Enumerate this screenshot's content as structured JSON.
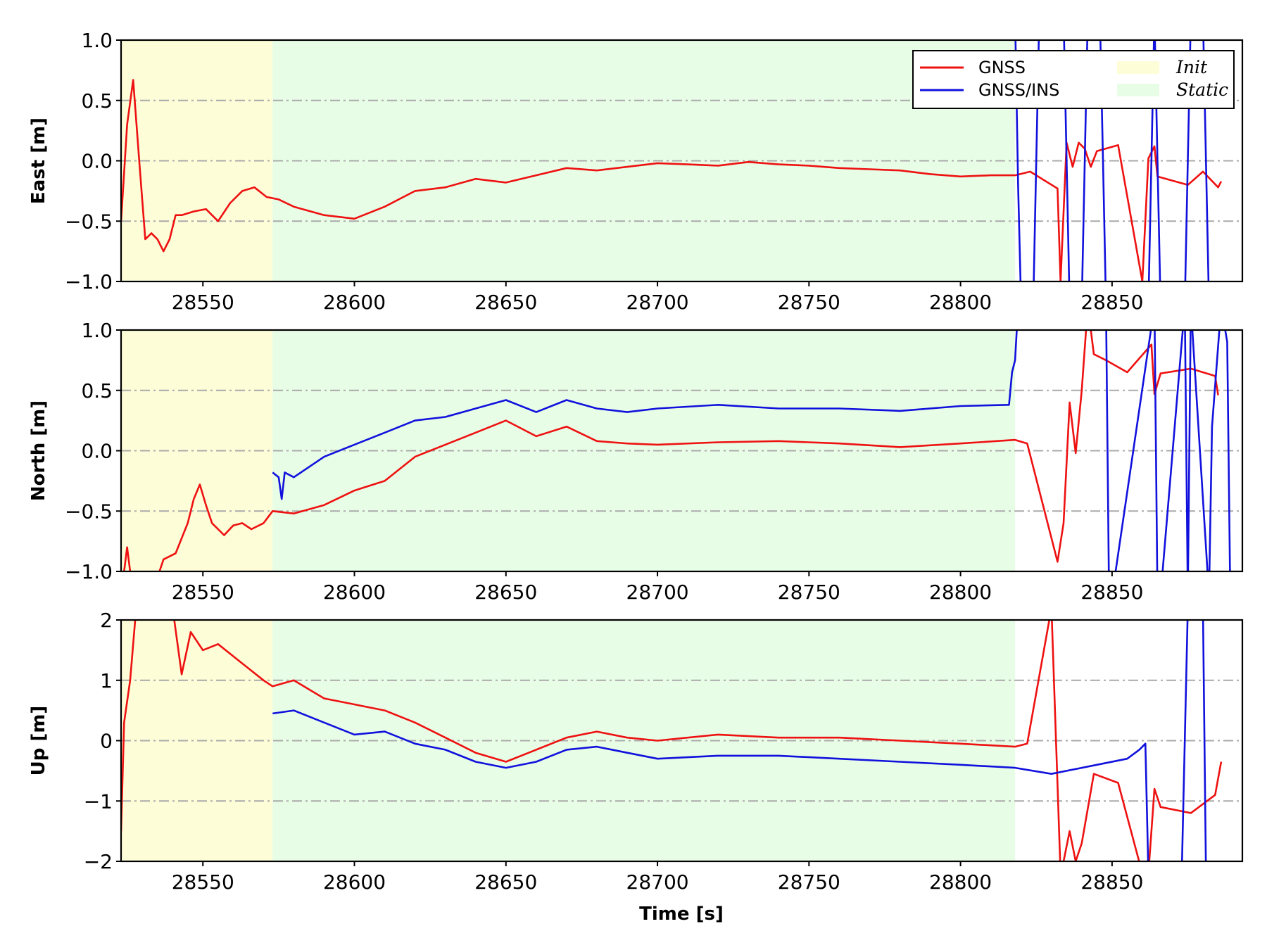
{
  "chart_data": {
    "type": "line",
    "xlabel": "Time [s]",
    "x_ticks": [
      "28550",
      "28600",
      "28650",
      "28700",
      "28750",
      "28800",
      "28850"
    ],
    "x_tick_values": [
      28550,
      28600,
      28650,
      28700,
      28750,
      28800,
      28850
    ],
    "xlim": [
      28523,
      28893
    ],
    "colors": {
      "GNSS": "#ee1111",
      "GNSS/INS": "#1111dd",
      "Init": "#fdfdd8",
      "Static": "#e8fde6",
      "grid": "#aaaaaa"
    },
    "legend": {
      "placement": "top-right",
      "series": [
        "GNSS",
        "GNSS/INS"
      ],
      "regions": [
        "Init",
        "Static"
      ]
    },
    "regions": [
      {
        "name": "Init",
        "x": [
          28523,
          28573
        ]
      },
      {
        "name": "Static",
        "x": [
          28573,
          28818
        ]
      }
    ],
    "panels": [
      {
        "ylabel": "East [m]",
        "ylim": [
          -1.0,
          1.0
        ],
        "y_ticks": [
          "1.0",
          "0.5",
          "0.0",
          "−0.5",
          "−1.0"
        ],
        "y_tick_values": [
          1.0,
          0.5,
          0.0,
          -0.5,
          -1.0
        ],
        "grid_y": [
          0.5,
          0.0,
          -0.5
        ],
        "series": [
          {
            "name": "GNSS",
            "x": [
              28523,
              28525,
              28527,
              28529,
              28531,
              28533,
              28535,
              28537,
              28539,
              28541,
              28543,
              28547,
              28551,
              28555,
              28559,
              28563,
              28567,
              28571,
              28575,
              28580,
              28590,
              28600,
              28610,
              28620,
              28630,
              28640,
              28650,
              28660,
              28670,
              28680,
              28690,
              28700,
              28710,
              28720,
              28730,
              28740,
              28750,
              28760,
              28770,
              28780,
              28790,
              28800,
              28810,
              28818,
              28823,
              28832,
              28833,
              28835,
              28837,
              28839,
              28841,
              28843,
              28845,
              28852,
              28860,
              28862,
              28864,
              28865,
              28875,
              28880,
              28885,
              28886
            ],
            "y": [
              -0.5,
              0.3,
              0.67,
              0.0,
              -0.65,
              -0.6,
              -0.65,
              -0.75,
              -0.65,
              -0.45,
              -0.45,
              -0.42,
              -0.4,
              -0.5,
              -0.35,
              -0.25,
              -0.22,
              -0.3,
              -0.32,
              -0.38,
              -0.45,
              -0.48,
              -0.38,
              -0.25,
              -0.22,
              -0.15,
              -0.18,
              -0.12,
              -0.06,
              -0.08,
              -0.05,
              -0.02,
              -0.03,
              -0.04,
              -0.01,
              -0.03,
              -0.04,
              -0.06,
              -0.07,
              -0.08,
              -0.11,
              -0.13,
              -0.12,
              -0.12,
              -0.09,
              -0.23,
              -1.0,
              0.15,
              -0.05,
              0.15,
              0.1,
              -0.05,
              0.08,
              0.13,
              -1.0,
              0.02,
              0.12,
              -0.13,
              -0.2,
              -0.09,
              -0.22,
              -0.17
            ]
          },
          {
            "name": "GNSS/INS",
            "x": [
              28818,
              28819,
              28820,
              28824,
              28825,
              28826,
              28834,
              28835,
              28836,
              28840,
              28841,
              28842,
              28846,
              28847,
              28848,
              28862,
              28863,
              28864,
              28865,
              28866,
              28874,
              28875,
              28876,
              28880,
              28881,
              28882
            ],
            "y": [
              1.2,
              -0.2,
              -1.2,
              -1.2,
              0.0,
              1.2,
              1.2,
              0.0,
              -1.2,
              -1.2,
              0.0,
              1.2,
              1.2,
              0.0,
              -1.2,
              -1.2,
              0.0,
              1.2,
              0.0,
              -1.2,
              -1.2,
              0.0,
              1.2,
              1.2,
              0.0,
              -1.2
            ]
          }
        ]
      },
      {
        "ylabel": "North [m]",
        "ylim": [
          -1.0,
          1.0
        ],
        "y_ticks": [
          "1.0",
          "0.5",
          "0.0",
          "−0.5",
          "−1.0"
        ],
        "y_tick_values": [
          1.0,
          0.5,
          0.0,
          -0.5,
          -1.0
        ],
        "grid_y": [
          0.5,
          0.0,
          -0.5
        ],
        "series": [
          {
            "name": "GNSS",
            "x": [
              28523,
              28525,
              28527,
              28529,
              28533,
              28537,
              28541,
              28545,
              28547,
              28549,
              28551,
              28553,
              28557,
              28560,
              28563,
              28566,
              28570,
              28573,
              28580,
              28590,
              28600,
              28610,
              28620,
              28630,
              28640,
              28650,
              28660,
              28670,
              28680,
              28690,
              28700,
              28720,
              28740,
              28760,
              28780,
              28800,
              28818,
              28822,
              28832,
              28834,
              28836,
              28838,
              28840,
              28842,
              28844,
              28848,
              28855,
              28863,
              28864,
              28866,
              28876,
              28884,
              28885
            ],
            "y": [
              -1.2,
              -0.8,
              -1.2,
              -1.2,
              -1.2,
              -0.9,
              -0.85,
              -0.6,
              -0.4,
              -0.28,
              -0.45,
              -0.6,
              -0.7,
              -0.62,
              -0.6,
              -0.65,
              -0.6,
              -0.5,
              -0.52,
              -0.45,
              -0.33,
              -0.25,
              -0.05,
              0.05,
              0.15,
              0.25,
              0.12,
              0.2,
              0.08,
              0.06,
              0.05,
              0.07,
              0.08,
              0.06,
              0.03,
              0.06,
              0.09,
              0.06,
              -0.92,
              -0.6,
              0.4,
              -0.02,
              0.5,
              1.2,
              0.8,
              0.75,
              0.65,
              0.88,
              0.47,
              0.64,
              0.68,
              0.62,
              0.46
            ]
          },
          {
            "name": "GNSS/INS",
            "x": [
              28573,
              28575,
              28576,
              28577,
              28580,
              28590,
              28600,
              28610,
              28620,
              28630,
              28640,
              28650,
              28660,
              28670,
              28680,
              28690,
              28700,
              28720,
              28740,
              28760,
              28780,
              28800,
              28816,
              28817,
              28818,
              28819,
              28848,
              28849,
              28850,
              28864,
              28865,
              28866,
              28874,
              28875,
              28876,
              28882,
              28883,
              28886,
              28888,
              28889
            ],
            "y": [
              -0.18,
              -0.22,
              -0.4,
              -0.18,
              -0.22,
              -0.05,
              0.05,
              0.15,
              0.25,
              0.28,
              0.35,
              0.42,
              0.32,
              0.42,
              0.35,
              0.32,
              0.35,
              0.38,
              0.35,
              0.35,
              0.33,
              0.37,
              0.38,
              0.65,
              0.75,
              1.2,
              1.2,
              -1.2,
              -1.2,
              1.2,
              -1.2,
              -1.2,
              1.2,
              -1.2,
              1.2,
              -1.2,
              0.2,
              1.2,
              0.9,
              -1.2
            ]
          }
        ]
      },
      {
        "ylabel": "Up [m]",
        "ylim": [
          -2,
          2
        ],
        "y_ticks": [
          "2",
          "1",
          "0",
          "−1",
          "−2"
        ],
        "y_tick_values": [
          2,
          1,
          0,
          -1,
          -2
        ],
        "grid_y": [
          1,
          0,
          -1
        ],
        "series": [
          {
            "name": "GNSS",
            "x": [
              28523,
              28524,
              28526,
              28528,
              28532,
              28540,
              28543,
              28546,
              28550,
              28555,
              28560,
              28565,
              28570,
              28573,
              28580,
              28590,
              28600,
              28610,
              28620,
              28630,
              28640,
              28650,
              28660,
              28670,
              28680,
              28690,
              28700,
              28720,
              28740,
              28760,
              28780,
              28800,
              28818,
              28822,
              28830,
              28833,
              28834,
              28836,
              28838,
              28840,
              28844,
              28852,
              28860,
              28862,
              28864,
              28866,
              28876,
              28884,
              28886
            ],
            "y": [
              -1.5,
              0.3,
              1.0,
              2.2,
              2.2,
              2.2,
              1.1,
              1.8,
              1.5,
              1.6,
              1.4,
              1.2,
              1.0,
              0.9,
              1.0,
              0.7,
              0.6,
              0.5,
              0.3,
              0.05,
              -0.2,
              -0.35,
              -0.15,
              0.05,
              0.15,
              0.05,
              0.0,
              0.1,
              0.05,
              0.05,
              0.0,
              -0.05,
              -0.1,
              -0.05,
              2.2,
              -2.2,
              -2.0,
              -1.5,
              -2.0,
              -1.7,
              -0.55,
              -0.7,
              -2.2,
              -2.2,
              -0.8,
              -1.1,
              -1.2,
              -0.9,
              -0.35
            ]
          },
          {
            "name": "GNSS/INS",
            "x": [
              28573,
              28580,
              28590,
              28600,
              28610,
              28620,
              28630,
              28640,
              28650,
              28660,
              28670,
              28680,
              28690,
              28700,
              28720,
              28740,
              28760,
              28780,
              28800,
              28818,
              28830,
              28845,
              28855,
              28859,
              28861,
              28862,
              28873,
              28875,
              28876,
              28880,
              28881
            ],
            "y": [
              0.45,
              0.5,
              0.3,
              0.1,
              0.15,
              -0.05,
              -0.15,
              -0.35,
              -0.45,
              -0.35,
              -0.15,
              -0.1,
              -0.2,
              -0.3,
              -0.25,
              -0.25,
              -0.3,
              -0.35,
              -0.4,
              -0.45,
              -0.55,
              -0.4,
              -0.3,
              -0.15,
              -0.05,
              -2.2,
              -2.2,
              2.2,
              2.2,
              2.2,
              -2.2
            ]
          }
        ]
      }
    ]
  }
}
